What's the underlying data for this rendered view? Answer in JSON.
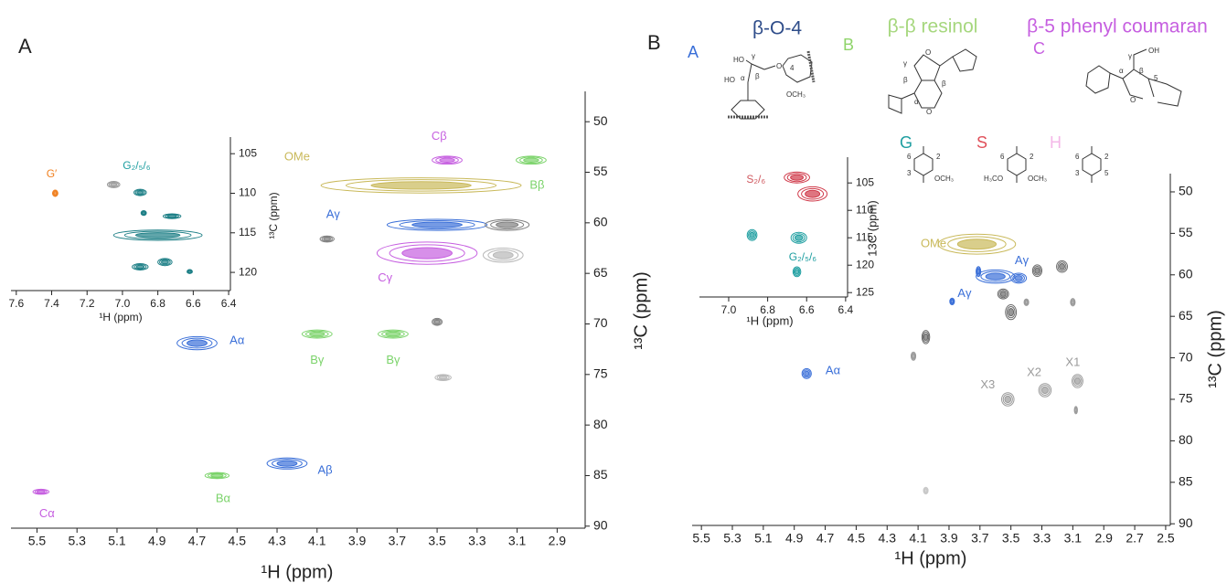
{
  "chart_data": [
    {
      "type": "nmr",
      "panel": "A",
      "xlabel": "¹H (ppm)",
      "ylabel": "¹³C (ppm)",
      "xlim": [
        5.63,
        2.76
      ],
      "ylim": [
        47,
        90.2
      ],
      "xticks": [
        5.5,
        5.3,
        5.1,
        4.9,
        4.7,
        4.5,
        4.3,
        4.1,
        3.9,
        3.7,
        3.5,
        3.3,
        3.1,
        2.9
      ],
      "yticks": [
        50,
        55,
        60,
        65,
        70,
        75,
        80,
        85,
        90
      ],
      "peaks": [
        {
          "x": 3.58,
          "y": 56.3,
          "w": 1.0,
          "h": 1.5,
          "color": "#c9b95a"
        },
        {
          "x": 3.45,
          "y": 53.8,
          "w": 0.15,
          "h": 0.8,
          "color": "#c65fe0"
        },
        {
          "x": 3.03,
          "y": 53.8,
          "w": 0.15,
          "h": 0.8,
          "color": "#7bd36a"
        },
        {
          "x": 3.5,
          "y": 60.2,
          "w": 0.5,
          "h": 1.1,
          "color": "#3a6fd8"
        },
        {
          "x": 3.15,
          "y": 60.2,
          "w": 0.22,
          "h": 1.1,
          "color": "#808080"
        },
        {
          "x": 3.55,
          "y": 63.0,
          "w": 0.5,
          "h": 2.2,
          "color": "#c65fe0"
        },
        {
          "x": 3.17,
          "y": 63.2,
          "w": 0.2,
          "h": 1.4,
          "color": "#b8b8b8"
        },
        {
          "x": 4.05,
          "y": 61.6,
          "w": 0.07,
          "h": 0.6,
          "color": "#808080"
        },
        {
          "x": 4.7,
          "y": 71.9,
          "w": 0.2,
          "h": 1.3,
          "color": "#3a6fd8"
        },
        {
          "x": 4.1,
          "y": 71.0,
          "w": 0.15,
          "h": 0.8,
          "color": "#7bd36a"
        },
        {
          "x": 3.72,
          "y": 71.0,
          "w": 0.15,
          "h": 0.8,
          "color": "#7bd36a"
        },
        {
          "x": 3.5,
          "y": 69.8,
          "w": 0.05,
          "h": 0.7,
          "color": "#808080"
        },
        {
          "x": 3.47,
          "y": 75.3,
          "w": 0.08,
          "h": 0.6,
          "color": "#b8b8b8"
        },
        {
          "x": 4.25,
          "y": 83.8,
          "w": 0.2,
          "h": 1.1,
          "color": "#3a6fd8"
        },
        {
          "x": 4.6,
          "y": 85.0,
          "w": 0.12,
          "h": 0.6,
          "color": "#7bd36a"
        },
        {
          "x": 5.48,
          "y": 86.6,
          "w": 0.08,
          "h": 0.5,
          "color": "#c65fe0"
        }
      ],
      "annotations": [
        {
          "text": "OMe",
          "x": 4.2,
          "y": 53.5,
          "color": "#c9b95a"
        },
        {
          "text": "Cβ",
          "x": 3.49,
          "y": 51.5,
          "color": "#c65fe0"
        },
        {
          "text": "Bβ",
          "x": 3.0,
          "y": 56.3,
          "color": "#7bd36a"
        },
        {
          "text": "Aγ",
          "x": 4.02,
          "y": 59.2,
          "color": "#3a6fd8"
        },
        {
          "text": "Cγ",
          "x": 3.76,
          "y": 65.5,
          "color": "#c65fe0"
        },
        {
          "text": "Aα",
          "x": 4.5,
          "y": 71.7,
          "color": "#3a6fd8"
        },
        {
          "text": "Bγ",
          "x": 4.1,
          "y": 73.6,
          "color": "#7bd36a"
        },
        {
          "text": "Bγ",
          "x": 3.72,
          "y": 73.6,
          "color": "#7bd36a"
        },
        {
          "text": "Aβ",
          "x": 4.06,
          "y": 84.5,
          "color": "#3a6fd8"
        },
        {
          "text": "Bα",
          "x": 4.57,
          "y": 87.3,
          "color": "#7bd36a"
        },
        {
          "text": "Cα",
          "x": 5.45,
          "y": 88.8,
          "color": "#c65fe0"
        }
      ]
    },
    {
      "type": "nmr",
      "xlabel": "¹H (ppm)",
      "ylabel": "¹³C (ppm)",
      "xlim": [
        7.63,
        6.39
      ],
      "ylim": [
        102.9,
        122.3
      ],
      "xticks": [
        7.6,
        7.4,
        7.2,
        {
          "value": 7,
          "label": "7.0"
        },
        6.8,
        6.6,
        6.4
      ],
      "yticks": [
        105,
        110,
        115,
        120
      ],
      "peaks": [
        {
          "x": 7.38,
          "y": 110.0,
          "w": 0.03,
          "h": 0.8,
          "color": "#f08020"
        },
        {
          "x": 7.05,
          "y": 108.9,
          "w": 0.07,
          "h": 0.8,
          "color": "#9a9a9a"
        },
        {
          "x": 6.9,
          "y": 109.9,
          "w": 0.07,
          "h": 0.8,
          "color": "#1d7f86"
        },
        {
          "x": 6.88,
          "y": 112.5,
          "w": 0.03,
          "h": 0.6,
          "color": "#1d7f86"
        },
        {
          "x": 6.72,
          "y": 112.9,
          "w": 0.1,
          "h": 0.6,
          "color": "#1d7f86"
        },
        {
          "x": 6.8,
          "y": 115.3,
          "w": 0.5,
          "h": 1.3,
          "color": "#1d7f86"
        },
        {
          "x": 6.9,
          "y": 119.3,
          "w": 0.09,
          "h": 0.8,
          "color": "#1d7f86"
        },
        {
          "x": 6.76,
          "y": 118.7,
          "w": 0.08,
          "h": 0.9,
          "color": "#1d7f86"
        },
        {
          "x": 6.62,
          "y": 119.9,
          "w": 0.03,
          "h": 0.5,
          "color": "#1d7f86"
        }
      ],
      "annotations": [
        {
          "text": "G′",
          "x": 7.4,
          "y": 107.6,
          "color": "#f08020"
        },
        {
          "text": "G₂/₅/₆",
          "x": 6.92,
          "y": 106.6,
          "color": "#1d9ea0"
        }
      ]
    },
    {
      "type": "nmr",
      "panel": "B",
      "xlabel": "¹H (ppm)",
      "ylabel": "¹³C (ppm)",
      "xlim": [
        5.56,
        2.47
      ],
      "ylim": [
        47.8,
        90.2
      ],
      "xticks": [
        5.5,
        5.3,
        5.1,
        4.9,
        4.7,
        4.5,
        4.3,
        4.1,
        3.9,
        3.7,
        3.5,
        3.3,
        3.1,
        2.9,
        2.7,
        2.5
      ],
      "yticks": [
        50,
        55,
        60,
        65,
        70,
        75,
        80,
        85,
        90
      ],
      "peaks": [
        {
          "x": 3.72,
          "y": 56.3,
          "w": 0.5,
          "h": 2.4,
          "color": "#c9b95a"
        },
        {
          "x": 3.6,
          "y": 60.2,
          "w": 0.25,
          "h": 1.6,
          "color": "#3a6fd8"
        },
        {
          "x": 3.45,
          "y": 60.4,
          "w": 0.1,
          "h": 1.2,
          "color": "#3a6fd8"
        },
        {
          "x": 3.71,
          "y": 59.6,
          "w": 0.03,
          "h": 1.2,
          "color": "#3a6fd8"
        },
        {
          "x": 3.88,
          "y": 63.2,
          "w": 0.03,
          "h": 0.8,
          "color": "#3a6fd8"
        },
        {
          "x": 3.33,
          "y": 59.5,
          "w": 0.06,
          "h": 1.4,
          "color": "#6a6a6a"
        },
        {
          "x": 3.17,
          "y": 59.0,
          "w": 0.07,
          "h": 1.4,
          "color": "#6a6a6a"
        },
        {
          "x": 3.55,
          "y": 62.3,
          "w": 0.07,
          "h": 1.2,
          "color": "#6a6a6a"
        },
        {
          "x": 3.5,
          "y": 64.5,
          "w": 0.07,
          "h": 1.8,
          "color": "#6a6a6a"
        },
        {
          "x": 3.4,
          "y": 63.3,
          "w": 0.03,
          "h": 0.8,
          "color": "#9a9a9a"
        },
        {
          "x": 3.1,
          "y": 63.3,
          "w": 0.03,
          "h": 0.9,
          "color": "#9a9a9a"
        },
        {
          "x": 4.05,
          "y": 67.5,
          "w": 0.05,
          "h": 1.6,
          "color": "#6a6a6a"
        },
        {
          "x": 4.13,
          "y": 69.8,
          "w": 0.03,
          "h": 1.0,
          "color": "#9a9a9a"
        },
        {
          "x": 4.82,
          "y": 71.9,
          "w": 0.06,
          "h": 1.2,
          "color": "#3a6fd8"
        },
        {
          "x": 3.52,
          "y": 75.0,
          "w": 0.08,
          "h": 1.6,
          "color": "#9a9a9a"
        },
        {
          "x": 3.28,
          "y": 73.9,
          "w": 0.08,
          "h": 1.6,
          "color": "#9a9a9a"
        },
        {
          "x": 3.07,
          "y": 72.8,
          "w": 0.07,
          "h": 1.6,
          "color": "#9a9a9a"
        },
        {
          "x": 3.08,
          "y": 76.3,
          "w": 0.02,
          "h": 0.9,
          "color": "#9a9a9a"
        },
        {
          "x": 4.05,
          "y": 86.0,
          "w": 0.03,
          "h": 0.8,
          "color": "#c8c8c8"
        }
      ],
      "annotations": [
        {
          "text": "OMe",
          "x": 4.0,
          "y": 56.3,
          "color": "#c9b95a"
        },
        {
          "text": "Aγ",
          "x": 3.43,
          "y": 58.3,
          "color": "#3a6fd8"
        },
        {
          "text": "Aγ",
          "x": 3.8,
          "y": 62.3,
          "color": "#3a6fd8"
        },
        {
          "text": "Aα",
          "x": 4.65,
          "y": 71.6,
          "color": "#3a6fd8"
        },
        {
          "text": "X3",
          "x": 3.65,
          "y": 73.3,
          "color": "#9a9a9a"
        },
        {
          "text": "X2",
          "x": 3.35,
          "y": 71.8,
          "color": "#9a9a9a"
        },
        {
          "text": "X1",
          "x": 3.1,
          "y": 70.6,
          "color": "#9a9a9a"
        }
      ]
    },
    {
      "type": "nmr",
      "xlabel": "¹H (ppm)",
      "ylabel": "13C (ppm)",
      "xlim": [
        7.15,
        6.39
      ],
      "ylim": [
        100.3,
        125.8
      ],
      "xticks": [
        {
          "value": 7,
          "label": "7.0"
        },
        6.8,
        6.6,
        6.4
      ],
      "yticks": [
        105,
        110,
        115,
        120,
        125
      ],
      "peaks": [
        {
          "x": 6.65,
          "y": 104.0,
          "w": 0.13,
          "h": 2.0,
          "color": "#d03a4a"
        },
        {
          "x": 6.57,
          "y": 107.0,
          "w": 0.15,
          "h": 2.6,
          "color": "#d03a4a"
        },
        {
          "x": 6.88,
          "y": 114.5,
          "w": 0.05,
          "h": 2.0,
          "color": "#1d9ea0"
        },
        {
          "x": 6.64,
          "y": 115.0,
          "w": 0.08,
          "h": 2.0,
          "color": "#1d9ea0"
        },
        {
          "x": 6.65,
          "y": 121.2,
          "w": 0.04,
          "h": 1.8,
          "color": "#1d9ea0"
        }
      ],
      "annotations": [
        {
          "text": "S₂/₆",
          "x": 6.86,
          "y": 104.4,
          "color": "#d05a60"
        },
        {
          "text": "G₂/₅/₆",
          "x": 6.62,
          "y": 118.6,
          "color": "#1d9ea0"
        }
      ]
    }
  ],
  "structures": {
    "A": {
      "letter": "A",
      "name": "β-O-4",
      "atoms": [
        "HO",
        "γ",
        "HO",
        "α",
        "β",
        "O",
        "4",
        "OCH₃"
      ]
    },
    "B": {
      "letter": "B",
      "name": "β-β resinol",
      "atoms": [
        "γ",
        "β",
        "β",
        "α",
        "O",
        "O"
      ]
    },
    "C": {
      "letter": "C",
      "name": "β-5 phenyl coumaran",
      "atoms": [
        "γ",
        "OH",
        "α",
        "β",
        "5",
        "O"
      ]
    },
    "G": {
      "letter": "G",
      "atoms": [
        "6",
        "2",
        "3",
        "OCH₃"
      ]
    },
    "S": {
      "letter": "S",
      "atoms": [
        "6",
        "2",
        "H₃CO",
        "OCH₃"
      ]
    },
    "H": {
      "letter": "H",
      "atoms": [
        "6",
        "2",
        "3",
        "5"
      ]
    }
  }
}
